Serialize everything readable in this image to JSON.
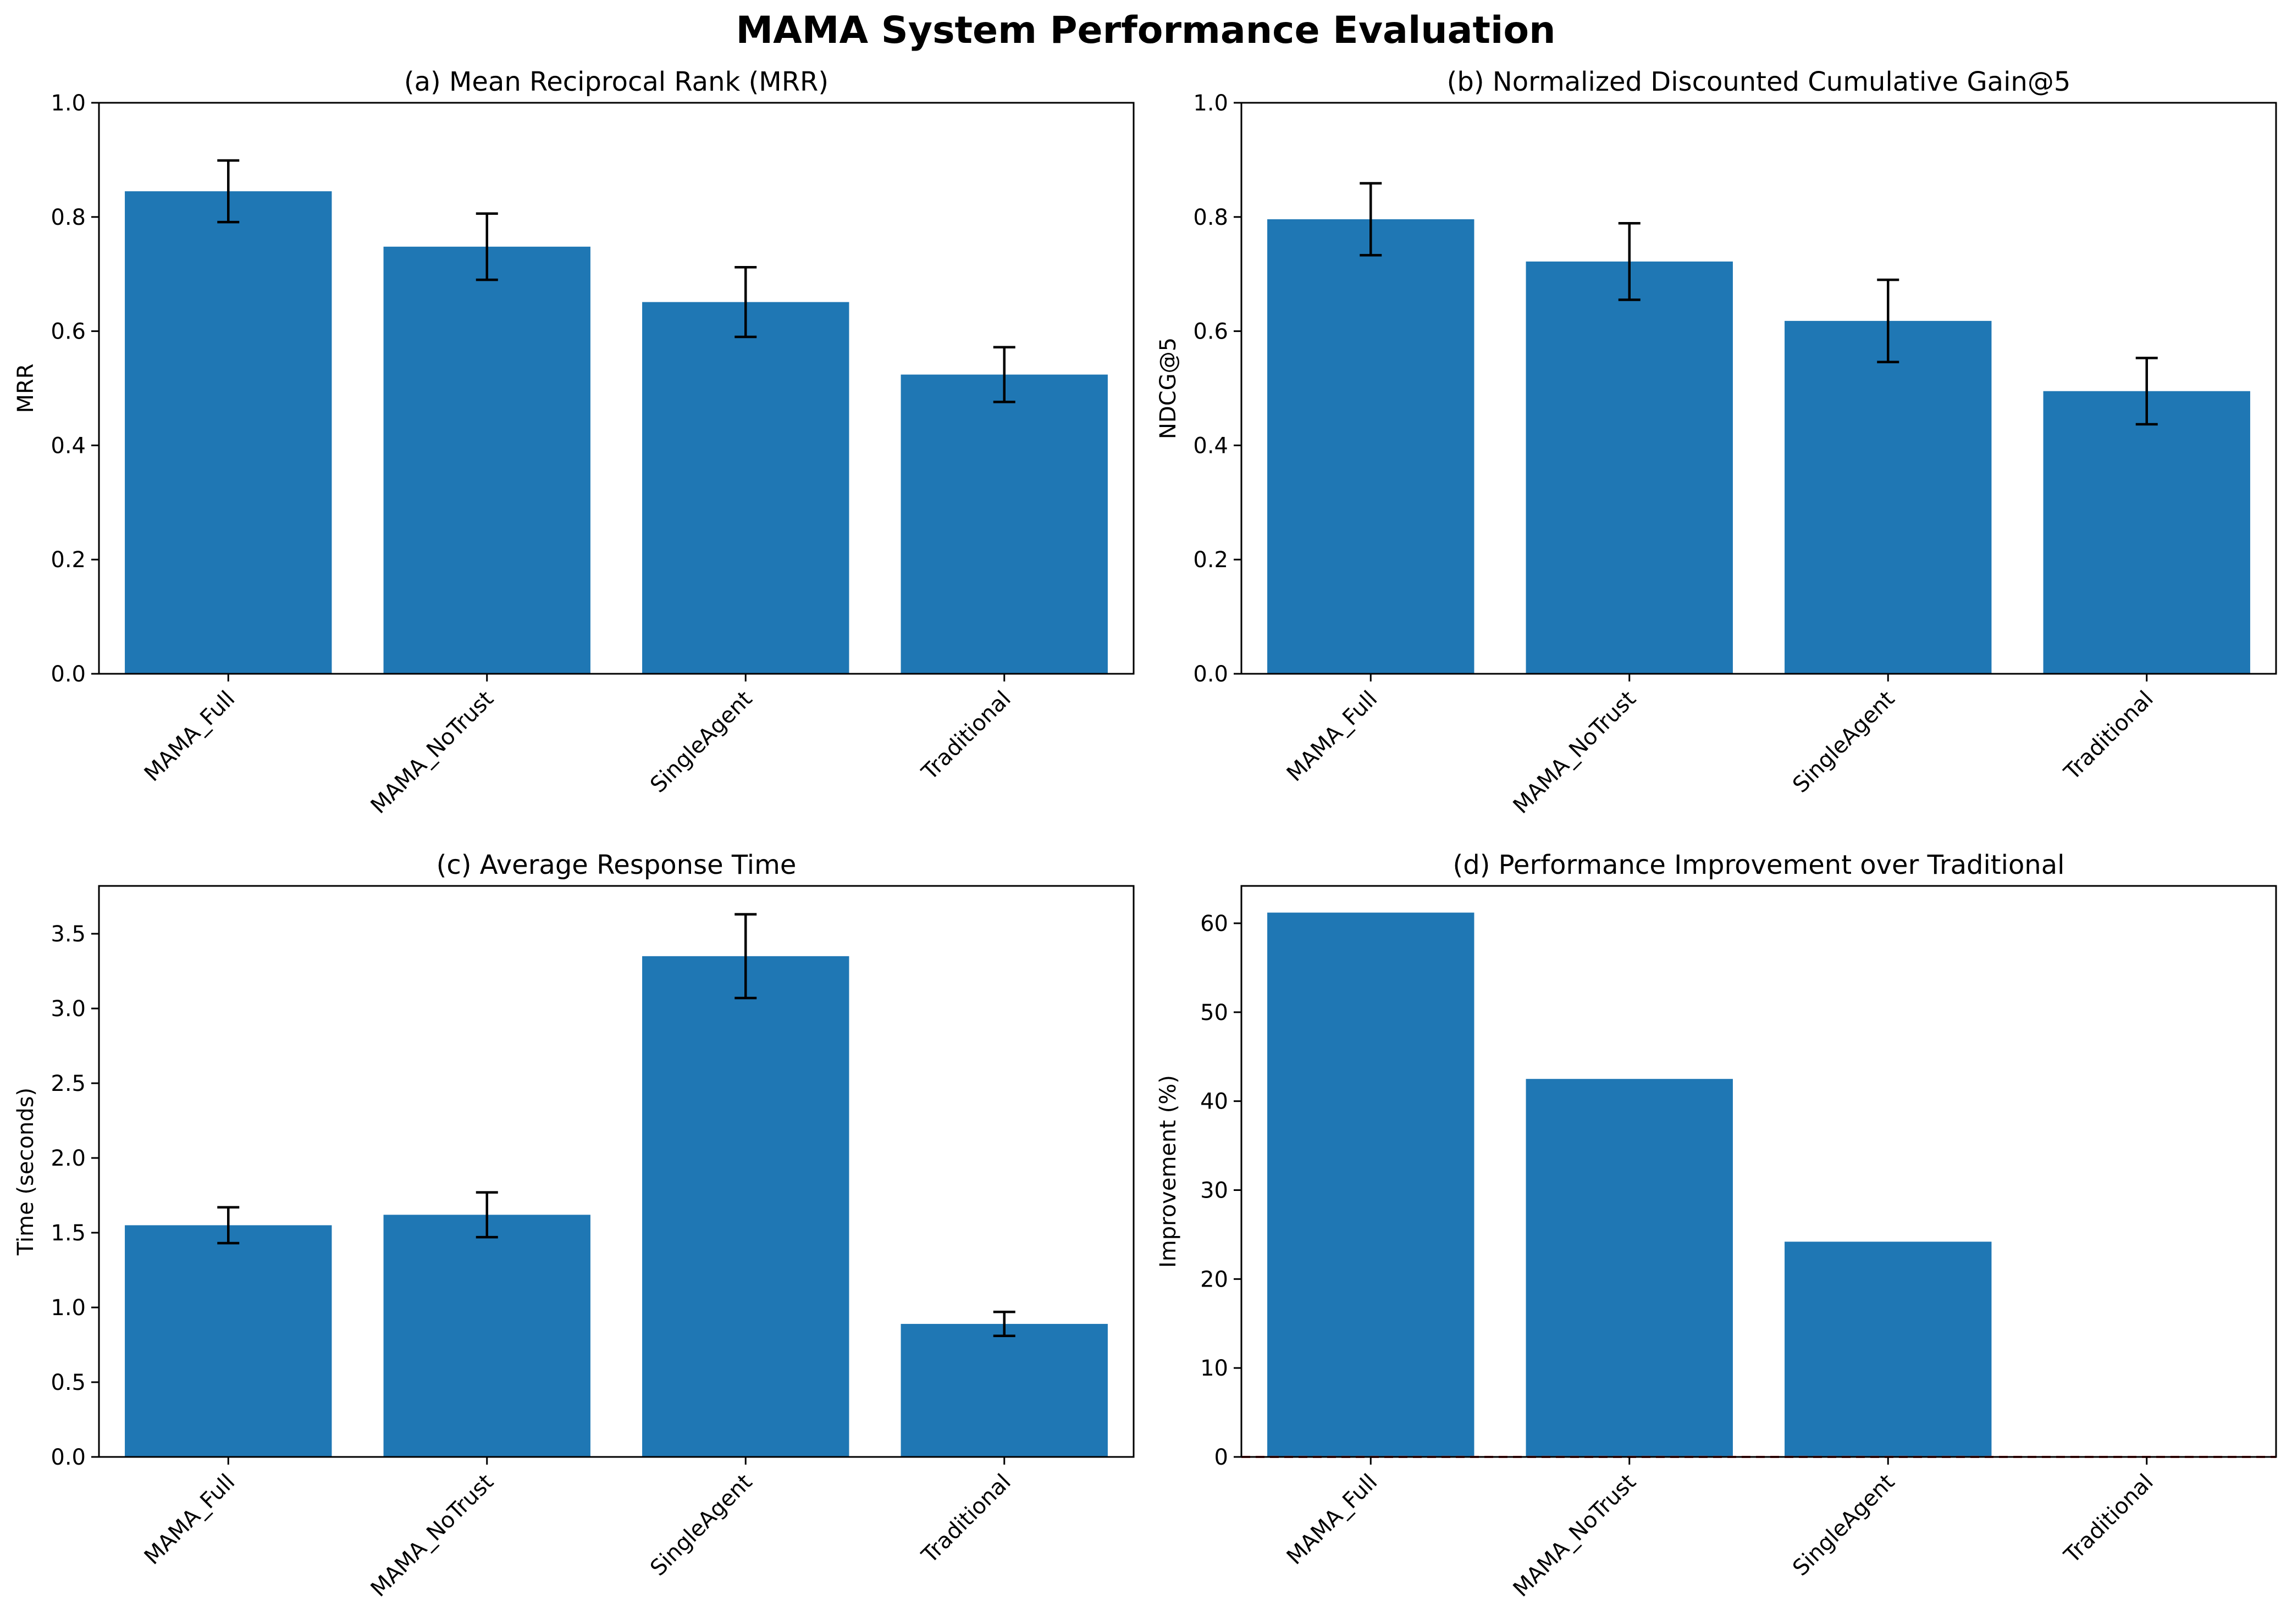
{
  "figure": {
    "title": "MAMA System Performance Evaluation"
  },
  "colors": {
    "bar": "#1f77b4",
    "error": "#000000",
    "zero_line": "#d62728",
    "axes": "#000000"
  },
  "chart_data": [
    {
      "type": "bar",
      "title": "(a) Mean Reciprocal Rank (MRR)",
      "xlabel": "",
      "ylabel": "MRR",
      "categories": [
        "MAMA_Full",
        "MAMA_NoTrust",
        "SingleAgent",
        "Traditional"
      ],
      "values": [
        0.845,
        0.748,
        0.651,
        0.524
      ],
      "errors": [
        0.054,
        0.058,
        0.061,
        0.048
      ],
      "ylim": [
        0,
        1.0
      ],
      "yticks": [
        "0.0",
        "0.2",
        "0.4",
        "0.6",
        "0.8",
        "1.0"
      ],
      "ytick_values": [
        0,
        0.2,
        0.4,
        0.6,
        0.8,
        1.0
      ],
      "grid": false
    },
    {
      "type": "bar",
      "title": "(b) Normalized Discounted Cumulative Gain@5",
      "xlabel": "",
      "ylabel": "NDCG@5",
      "categories": [
        "MAMA_Full",
        "MAMA_NoTrust",
        "SingleAgent",
        "Traditional"
      ],
      "values": [
        0.796,
        0.722,
        0.618,
        0.495
      ],
      "errors": [
        0.063,
        0.067,
        0.072,
        0.058
      ],
      "ylim": [
        0,
        1.0
      ],
      "yticks": [
        "0.0",
        "0.2",
        "0.4",
        "0.6",
        "0.8",
        "1.0"
      ],
      "ytick_values": [
        0,
        0.2,
        0.4,
        0.6,
        0.8,
        1.0
      ],
      "grid": false
    },
    {
      "type": "bar",
      "title": "(c) Average Response Time",
      "xlabel": "",
      "ylabel": "Time (seconds)",
      "categories": [
        "MAMA_Full",
        "MAMA_NoTrust",
        "SingleAgent",
        "Traditional"
      ],
      "values": [
        1.55,
        1.62,
        3.35,
        0.89
      ],
      "errors": [
        0.12,
        0.15,
        0.28,
        0.08
      ],
      "ylim": [
        0,
        3.82
      ],
      "yticks": [
        "0.0",
        "0.5",
        "1.0",
        "1.5",
        "2.0",
        "2.5",
        "3.0",
        "3.5"
      ],
      "ytick_values": [
        0,
        0.5,
        1.0,
        1.5,
        2.0,
        2.5,
        3.0,
        3.5
      ],
      "grid": false
    },
    {
      "type": "bar",
      "title": "(d) Performance Improvement over Traditional",
      "xlabel": "",
      "ylabel": "Improvement (%)",
      "categories": [
        "MAMA_Full",
        "MAMA_NoTrust",
        "SingleAgent",
        "Traditional"
      ],
      "values": [
        61.2,
        42.5,
        24.2,
        0.0
      ],
      "errors": null,
      "ylim": [
        0,
        64.2
      ],
      "yticks": [
        "0",
        "10",
        "20",
        "30",
        "40",
        "50",
        "60"
      ],
      "ytick_values": [
        0,
        10,
        20,
        30,
        40,
        50,
        60
      ],
      "reference_line": 0,
      "grid": false
    }
  ]
}
